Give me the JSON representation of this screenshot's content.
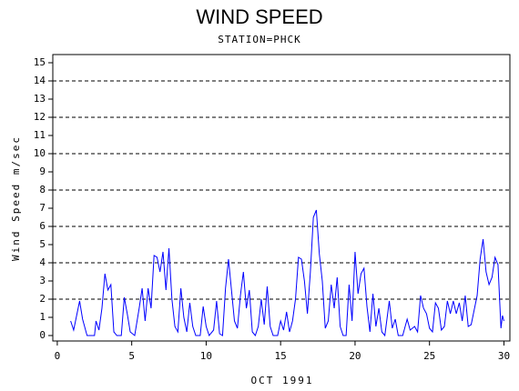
{
  "chart_data": {
    "type": "line",
    "title": "WIND SPEED",
    "subtitle": "STATION=PHCK",
    "x_label": "OCT 1991",
    "y_label": "Wind Speed m/sec",
    "xlim": [
      -0.3,
      30.4
    ],
    "ylim": [
      -0.3,
      15.45
    ],
    "xticks": [
      0,
      5,
      10,
      15,
      20,
      25,
      30
    ],
    "yticks": [
      0,
      1,
      2,
      3,
      4,
      5,
      6,
      7,
      8,
      9,
      10,
      11,
      12,
      13,
      14,
      15
    ],
    "reference_lines": [
      2,
      4,
      6,
      8,
      10,
      12,
      14
    ],
    "x": [
      0.9,
      1.1,
      1.5,
      1.7,
      2.0,
      2.5,
      2.6,
      2.8,
      3.0,
      3.2,
      3.4,
      3.6,
      3.8,
      4.0,
      4.3,
      4.5,
      4.7,
      4.9,
      5.2,
      5.5,
      5.7,
      5.9,
      6.1,
      6.3,
      6.5,
      6.7,
      6.9,
      7.1,
      7.3,
      7.5,
      7.7,
      7.9,
      8.1,
      8.3,
      8.5,
      8.7,
      8.9,
      9.1,
      9.3,
      9.6,
      9.8,
      10.0,
      10.2,
      10.5,
      10.7,
      10.9,
      11.1,
      11.3,
      11.5,
      11.7,
      11.9,
      12.1,
      12.3,
      12.5,
      12.7,
      12.9,
      13.1,
      13.3,
      13.5,
      13.7,
      13.9,
      14.1,
      14.3,
      14.5,
      14.8,
      15.0,
      15.2,
      15.4,
      15.6,
      15.8,
      16.0,
      16.2,
      16.4,
      16.6,
      16.8,
      17.0,
      17.2,
      17.4,
      17.6,
      17.8,
      18.0,
      18.2,
      18.4,
      18.6,
      18.8,
      19.0,
      19.2,
      19.4,
      19.6,
      19.8,
      20.0,
      20.2,
      20.4,
      20.6,
      20.8,
      21.0,
      21.2,
      21.4,
      21.6,
      21.8,
      22.0,
      22.3,
      22.5,
      22.7,
      22.9,
      23.2,
      23.5,
      23.7,
      24.0,
      24.2,
      24.4,
      24.6,
      24.8,
      25.0,
      25.2,
      25.4,
      25.6,
      25.8,
      26.0,
      26.2,
      26.4,
      26.6,
      26.8,
      27.0,
      27.2,
      27.4,
      27.6,
      27.8,
      28.0,
      28.2,
      28.4,
      28.6,
      28.8,
      29.0,
      29.2,
      29.4,
      29.6,
      29.8,
      29.9,
      30.0
    ],
    "series": [
      {
        "name": "Wind Speed",
        "color": "#0000ff",
        "values": [
          0.8,
          0.3,
          1.9,
          0.9,
          0,
          0,
          0.8,
          0.3,
          1.5,
          3.4,
          2.5,
          2.8,
          0.2,
          0,
          0,
          2.1,
          1.2,
          0.2,
          0,
          1.5,
          2.6,
          0.8,
          2.6,
          1.5,
          4.4,
          4.3,
          3.5,
          4.6,
          2.5,
          4.8,
          2.0,
          0.5,
          0.2,
          2.6,
          1.0,
          0.2,
          1.8,
          0.5,
          0,
          0,
          1.6,
          0.5,
          0,
          0.3,
          1.9,
          0.1,
          0,
          2.6,
          4.2,
          2.5,
          0.8,
          0.4,
          2.2,
          3.5,
          1.5,
          2.5,
          0.2,
          0,
          0.5,
          2.0,
          0.6,
          2.7,
          0.5,
          0,
          0,
          0.8,
          0.3,
          1.3,
          0.2,
          0.8,
          2.0,
          4.3,
          4.2,
          3.0,
          1.2,
          3.5,
          6.5,
          6.9,
          4.5,
          3.0,
          0.4,
          0.8,
          2.8,
          1.5,
          3.2,
          0.5,
          0,
          0,
          2.8,
          0.8,
          4.6,
          2.3,
          3.4,
          3.7,
          1.6,
          0.2,
          2.3,
          0.5,
          1.5,
          0.2,
          0,
          1.9,
          0.4,
          0.9,
          0,
          0,
          0.9,
          0.3,
          0.5,
          0.2,
          2.2,
          1.5,
          1.2,
          0.4,
          0.2,
          1.8,
          1.5,
          0.3,
          0.5,
          1.9,
          1.2,
          1.9,
          1.2,
          1.8,
          0.8,
          2.2,
          0.5,
          0.6,
          1.4,
          2.2,
          4.2,
          5.3,
          3.5,
          2.8,
          3.2,
          4.3,
          3.9,
          0.4,
          1.1,
          0.8
        ]
      }
    ]
  }
}
